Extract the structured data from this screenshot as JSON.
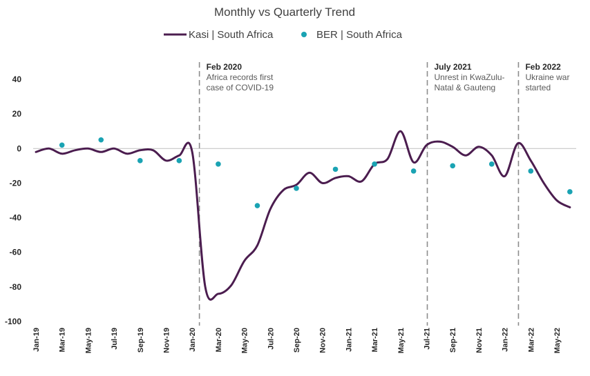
{
  "chart_data": {
    "type": "line",
    "title": "Monthly vs Quarterly Trend",
    "xlabel": "",
    "ylabel": "",
    "ylim": [
      -100,
      40
    ],
    "yticks": [
      40,
      20,
      0,
      -20,
      -40,
      -60,
      -80,
      -100
    ],
    "x_tick_labels": [
      "Jan-19",
      "Mar-19",
      "May-19",
      "Jul-19",
      "Sep-19",
      "Nov-19",
      "Jan-20",
      "Mar-20",
      "May-20",
      "Jul-20",
      "Sep-20",
      "Nov-20",
      "Jan-21",
      "Mar-21",
      "May-21",
      "Jul-21",
      "Sep-21",
      "Nov-21",
      "Jan-22",
      "Mar-22",
      "May-22"
    ],
    "x_tick_index": [
      0,
      2,
      4,
      6,
      8,
      10,
      12,
      14,
      16,
      18,
      20,
      22,
      24,
      26,
      28,
      30,
      32,
      34,
      36,
      38,
      40
    ],
    "legend_position": "top-center",
    "colors": {
      "line": "#4b1d4f",
      "marker": "#1aa3b3",
      "axis": "#bfbfbf",
      "annotation": "#8c8c8c"
    },
    "series": [
      {
        "name": "Kasi | South Africa",
        "style": "line",
        "x": [
          0,
          1,
          2,
          3,
          4,
          5,
          6,
          7,
          8,
          9,
          10,
          11,
          12,
          13,
          14,
          15,
          16,
          17,
          18,
          19,
          20,
          21,
          22,
          23,
          24,
          25,
          26,
          27,
          28,
          29,
          30,
          31,
          32,
          33,
          34,
          35,
          36,
          37,
          38,
          39,
          40,
          41
        ],
        "values": [
          -2,
          0,
          -3,
          -1,
          0,
          -2,
          0,
          -3,
          -1,
          -1,
          -7,
          -4,
          -2,
          -80,
          -84,
          -79,
          -65,
          -56,
          -35,
          -24,
          -21,
          -14,
          -20,
          -17,
          -16,
          -19,
          -9,
          -6,
          10,
          -8,
          2,
          4,
          1,
          -4,
          1,
          -4,
          -16,
          3,
          -7,
          -20,
          -30,
          -34
        ]
      },
      {
        "name": "BER | South Africa",
        "style": "marker",
        "x": [
          2,
          5,
          8,
          11,
          14,
          17,
          20,
          23,
          26,
          29,
          32,
          35,
          38,
          41
        ],
        "values": [
          2,
          5,
          -7,
          -7,
          -9,
          -33,
          -23,
          -12,
          -9,
          -13,
          -10,
          -9,
          -13,
          -25
        ]
      }
    ],
    "annotations": [
      {
        "at_index": 12.5,
        "heading": "Feb 2020",
        "lines": [
          "Africa records first",
          "case of COVID-19"
        ]
      },
      {
        "at_index": 30,
        "heading": "July 2021",
        "lines": [
          "Unrest in KwaZulu-",
          "Natal & Gauteng"
        ]
      },
      {
        "at_index": 37,
        "heading": "Feb 2022",
        "lines": [
          "Ukraine war",
          "started"
        ]
      }
    ]
  }
}
